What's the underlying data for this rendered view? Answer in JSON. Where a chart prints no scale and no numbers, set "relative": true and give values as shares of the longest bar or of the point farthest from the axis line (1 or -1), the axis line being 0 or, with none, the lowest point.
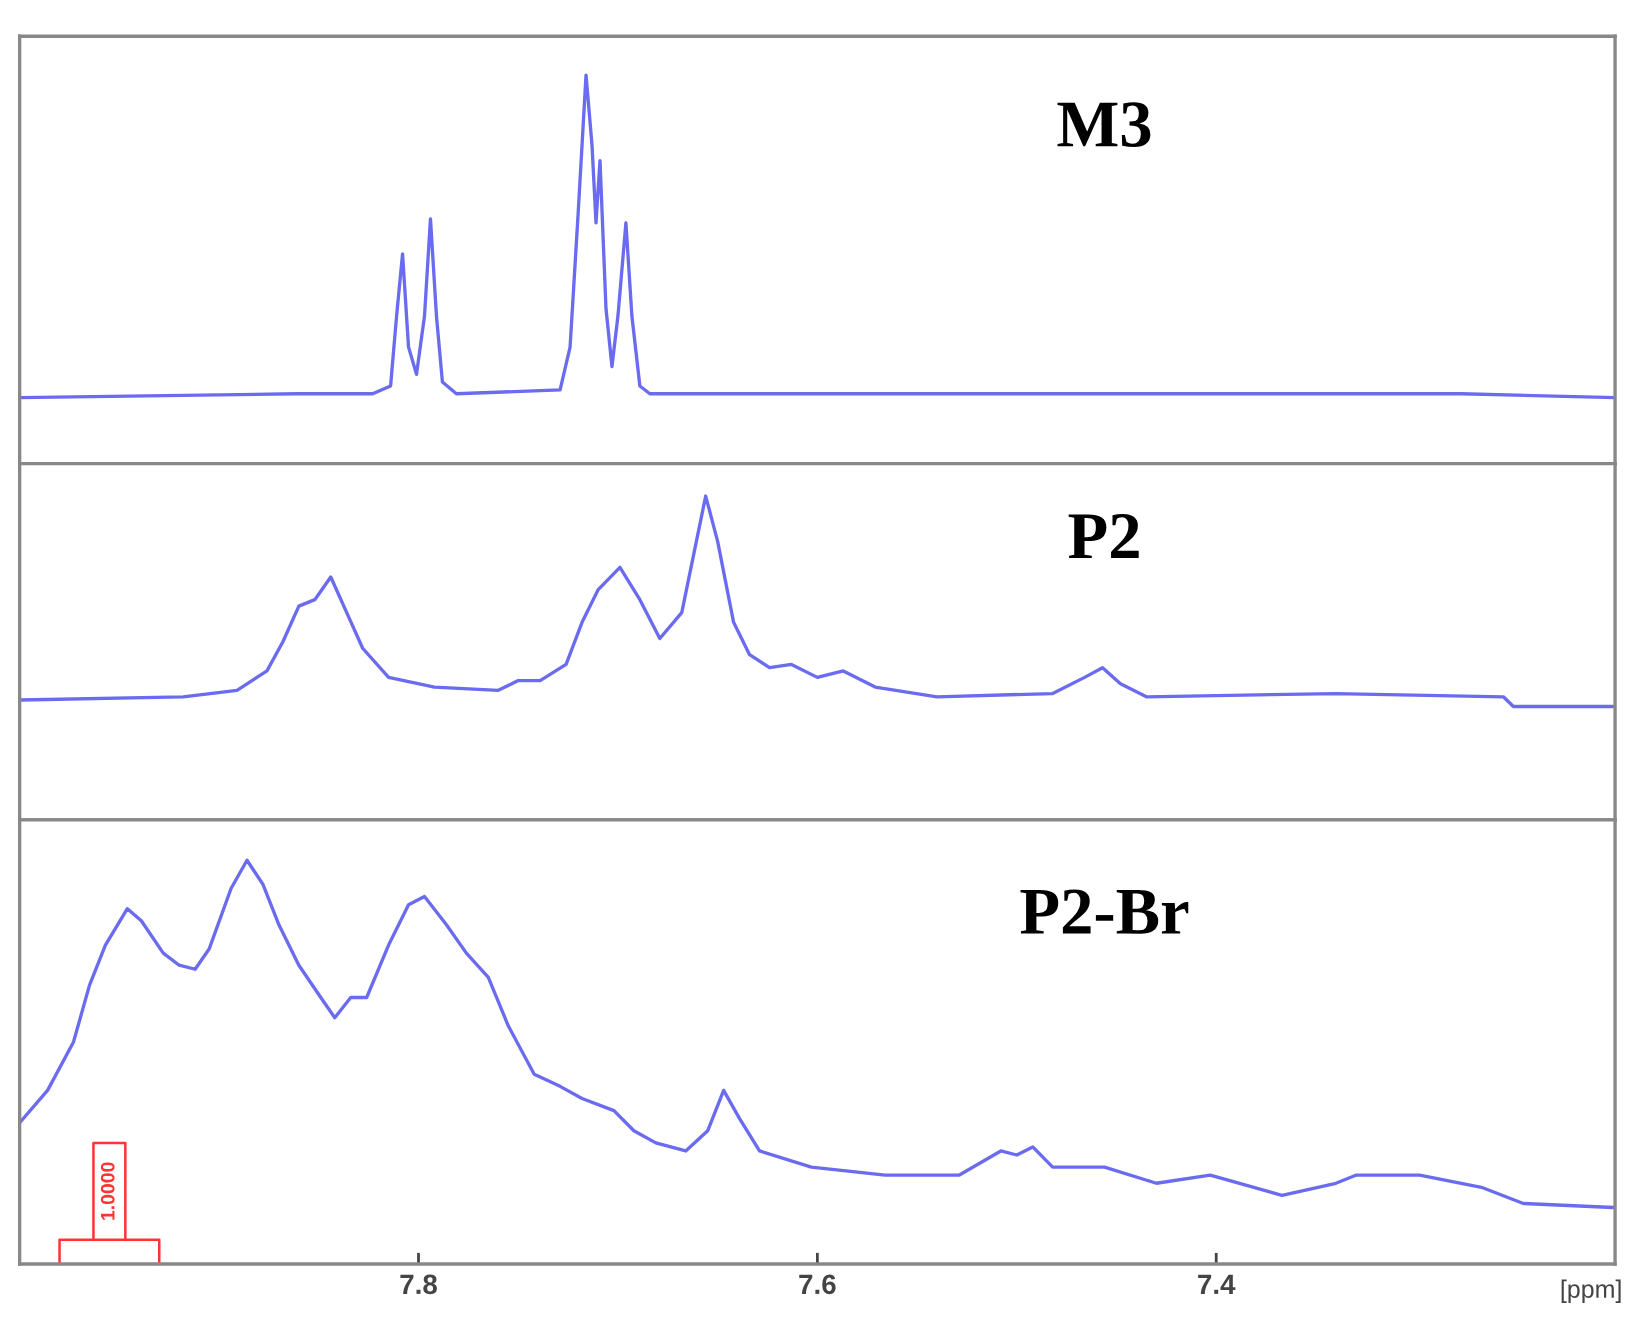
{
  "chart_data": [
    {
      "type": "line",
      "relative": true,
      "xlim": [
        8.0,
        7.2
      ],
      "tick_labels": false,
      "legend": false,
      "grid": false,
      "series": [
        {
          "name": "M3",
          "color": "#6b6bf0",
          "x": [
            8.0,
            7.861,
            7.823,
            7.814,
            7.811,
            7.808,
            7.805,
            7.801,
            7.797,
            7.794,
            7.791,
            7.788,
            7.781,
            7.729,
            7.724,
            7.72,
            7.716,
            7.713,
            7.711,
            7.709,
            7.706,
            7.703,
            7.7,
            7.696,
            7.693,
            7.689,
            7.684,
            7.65,
            7.416,
            7.277,
            7.2
          ],
          "values": [
            0.17,
            0.18,
            0.18,
            0.2,
            0.38,
            0.54,
            0.3,
            0.23,
            0.38,
            0.63,
            0.38,
            0.21,
            0.18,
            0.19,
            0.3,
            0.64,
            1.0,
            0.82,
            0.62,
            0.78,
            0.4,
            0.25,
            0.38,
            0.62,
            0.38,
            0.2,
            0.18,
            0.18,
            0.18,
            0.18,
            0.17
          ]
        }
      ]
    },
    {
      "type": "line",
      "relative": true,
      "xlim": [
        8.0,
        7.2
      ],
      "tick_labels": false,
      "legend": false,
      "grid": false,
      "series": [
        {
          "name": "P2",
          "color": "#6b6bf0",
          "x": [
            8.0,
            7.918,
            7.891,
            7.876,
            7.868,
            7.86,
            7.852,
            7.844,
            7.836,
            7.828,
            7.815,
            7.792,
            7.76,
            7.75,
            7.739,
            7.726,
            7.718,
            7.71,
            7.699,
            7.689,
            7.679,
            7.668,
            7.662,
            7.656,
            7.65,
            7.642,
            7.634,
            7.624,
            7.613,
            7.6,
            7.587,
            7.571,
            7.54,
            7.482,
            7.466,
            7.457,
            7.448,
            7.435,
            7.34,
            7.256,
            7.251,
            7.201
          ],
          "values": [
            0.37,
            0.38,
            0.4,
            0.46,
            0.55,
            0.66,
            0.68,
            0.75,
            0.64,
            0.53,
            0.44,
            0.41,
            0.4,
            0.43,
            0.43,
            0.48,
            0.61,
            0.71,
            0.78,
            0.68,
            0.56,
            0.64,
            0.82,
            1.0,
            0.86,
            0.61,
            0.51,
            0.47,
            0.48,
            0.44,
            0.46,
            0.41,
            0.38,
            0.39,
            0.44,
            0.47,
            0.42,
            0.38,
            0.39,
            0.38,
            0.35,
            0.35
          ]
        }
      ]
    },
    {
      "type": "line",
      "relative": true,
      "xlim": [
        8.0,
        7.2
      ],
      "xticks": [
        7.8,
        7.6,
        7.4
      ],
      "tick_labels": "x",
      "xlabel": "[ppm]",
      "legend": false,
      "grid": false,
      "annotations": [
        "1.0000"
      ],
      "series": [
        {
          "name": "P2-Br",
          "color": "#6b6bf0",
          "x": [
            8.0,
            7.986,
            7.973,
            7.965,
            7.957,
            7.946,
            7.939,
            7.928,
            7.92,
            7.912,
            7.905,
            7.894,
            7.886,
            7.878,
            7.87,
            7.86,
            7.849,
            7.842,
            7.834,
            7.826,
            7.815,
            7.805,
            7.797,
            7.786,
            7.776,
            7.765,
            7.755,
            7.742,
            7.729,
            7.718,
            7.702,
            7.692,
            7.681,
            7.666,
            7.655,
            7.647,
            7.639,
            7.629,
            7.603,
            7.566,
            7.529,
            7.508,
            7.5,
            7.492,
            7.482,
            7.456,
            7.43,
            7.403,
            7.367,
            7.34,
            7.33,
            7.314,
            7.298,
            7.267,
            7.246,
            7.201
          ],
          "values": [
            0.35,
            0.43,
            0.55,
            0.69,
            0.79,
            0.88,
            0.85,
            0.77,
            0.74,
            0.73,
            0.78,
            0.93,
            1.0,
            0.94,
            0.84,
            0.74,
            0.66,
            0.61,
            0.66,
            0.66,
            0.79,
            0.89,
            0.91,
            0.84,
            0.77,
            0.71,
            0.59,
            0.47,
            0.44,
            0.41,
            0.38,
            0.33,
            0.3,
            0.28,
            0.33,
            0.43,
            0.36,
            0.28,
            0.24,
            0.22,
            0.22,
            0.28,
            0.27,
            0.29,
            0.24,
            0.24,
            0.2,
            0.22,
            0.17,
            0.2,
            0.22,
            0.22,
            0.22,
            0.19,
            0.15,
            0.14
          ]
        }
      ]
    }
  ]
}
